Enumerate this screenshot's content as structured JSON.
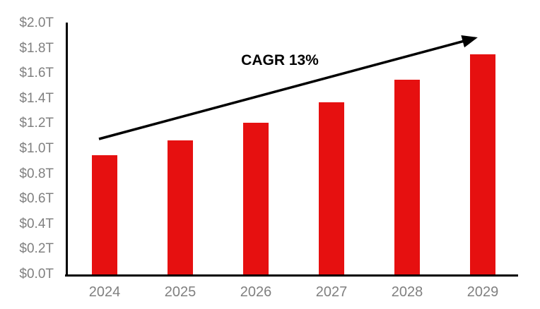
{
  "chart_data": {
    "type": "bar",
    "title": "",
    "categories": [
      "2024",
      "2025",
      "2026",
      "2027",
      "2028",
      "2029"
    ],
    "values": [
      0.95,
      1.07,
      1.21,
      1.37,
      1.55,
      1.75
    ],
    "y_ticks": [
      "$2.0T",
      "$1.8T",
      "$1.6T",
      "$1.4T",
      "$1.2T",
      "$1.0T",
      "$0.8T",
      "$0.6T",
      "$0.4T",
      "$0.2T",
      "$0.0T"
    ],
    "ylim": [
      0,
      2.0
    ],
    "xlabel": "",
    "ylabel": "",
    "annotation": "CAGR 13%",
    "legend": "none",
    "grid": false,
    "bar_color": "#E61010",
    "axis_color": "#000000",
    "tick_label_color": "#808080",
    "arrow_color": "#000000"
  }
}
